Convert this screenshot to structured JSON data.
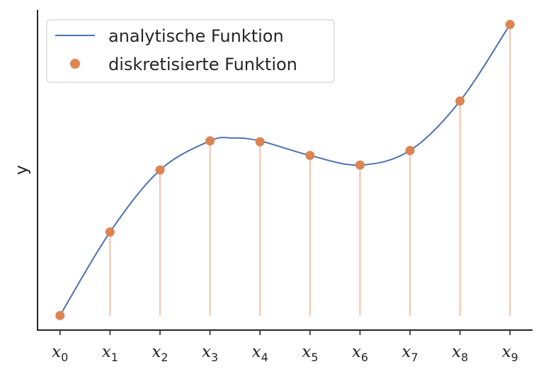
{
  "chart_data": {
    "type": "line",
    "ylabel": "y",
    "xlabel": "",
    "x_tick_labels": [
      {
        "base": "x",
        "sub": "0"
      },
      {
        "base": "x",
        "sub": "1"
      },
      {
        "base": "x",
        "sub": "2"
      },
      {
        "base": "x",
        "sub": "3"
      },
      {
        "base": "x",
        "sub": "4"
      },
      {
        "base": "x",
        "sub": "5"
      },
      {
        "base": "x",
        "sub": "6"
      },
      {
        "base": "x",
        "sub": "7"
      },
      {
        "base": "x",
        "sub": "8"
      },
      {
        "base": "x",
        "sub": "9"
      }
    ],
    "x": [
      0,
      1,
      2,
      3,
      4,
      5,
      6,
      7,
      8,
      9
    ],
    "xlim": [
      -0.45,
      9.45
    ],
    "ylim": [
      -0.05,
      1.05
    ],
    "y_ticks_visible": false,
    "grid": false,
    "legend_position": "top-left",
    "series": [
      {
        "name": "analytische Funktion",
        "kind": "line",
        "color": "#4c72b0",
        "x": [
          0,
          1,
          2,
          3,
          3.45,
          4,
          5,
          6,
          7,
          8,
          9
        ],
        "y": [
          0.0,
          0.287,
          0.5,
          0.6,
          0.61,
          0.6,
          0.55,
          0.517,
          0.567,
          0.737,
          1.0
        ]
      },
      {
        "name": "diskretisierte Funktion",
        "kind": "points",
        "color": "#dd8452",
        "stem_color": "#f2c7ad",
        "x": [
          0,
          1,
          2,
          3,
          4,
          5,
          6,
          7,
          8,
          9
        ],
        "y": [
          0.0,
          0.287,
          0.5,
          0.6,
          0.597,
          0.55,
          0.517,
          0.567,
          0.737,
          1.0
        ]
      }
    ]
  }
}
